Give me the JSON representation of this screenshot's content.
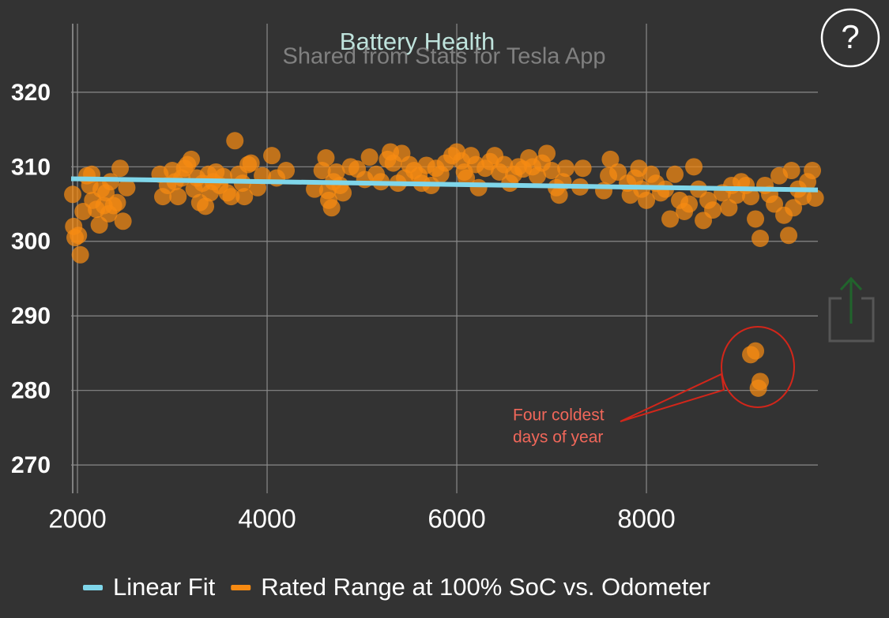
{
  "chart_data": {
    "type": "scatter",
    "title": "Battery Health",
    "subtitle": "Shared from Stats for Tesla App",
    "xlim": [
      1933,
      9808
    ],
    "ylim": [
      266.2,
      329.2
    ],
    "xticks": [
      2000,
      4000,
      6000,
      8000
    ],
    "yticks": [
      270,
      280,
      290,
      300,
      310,
      320
    ],
    "grid": true,
    "legend": "bottom",
    "annotation": [
      "Four coldest",
      "days of year"
    ],
    "series": [
      {
        "name": "Linear Fit",
        "color": "#7fd6ea",
        "kind": "line",
        "x": [
          1933,
          9808
        ],
        "values": [
          308.4,
          306.9
        ]
      },
      {
        "name": "Rated Range at 100% SoC vs. Odometer",
        "color": "#f78a12",
        "kind": "scatter",
        "x": [
          1950,
          1960,
          1975,
          2010,
          2030,
          2060,
          2100,
          2130,
          2160,
          2200,
          2230,
          2250,
          2300,
          2330,
          2350,
          2380,
          2420,
          2450,
          2480,
          2520,
          2150,
          2280,
          2870,
          2900,
          2950,
          3000,
          3030,
          3060,
          3100,
          3130,
          3160,
          3200,
          3230,
          3260,
          3290,
          3320,
          3350,
          3380,
          3400,
          3430,
          3460,
          3500,
          3540,
          3580,
          3620,
          3660,
          3700,
          3740,
          3760,
          3800,
          3830,
          3900,
          3950,
          4050,
          4100,
          4200,
          4500,
          4580,
          4620,
          4640,
          4650,
          4680,
          4700,
          4730,
          4770,
          4800,
          4880,
          4950,
          5030,
          5080,
          5150,
          5200,
          5270,
          5300,
          5330,
          5380,
          5420,
          5450,
          5500,
          5550,
          5600,
          5630,
          5680,
          5730,
          5780,
          5830,
          5880,
          5950,
          6000,
          6050,
          6080,
          6100,
          6150,
          6200,
          6230,
          6300,
          6350,
          6400,
          6450,
          6500,
          6560,
          6600,
          6650,
          6700,
          6760,
          6800,
          6850,
          6900,
          6950,
          7000,
          7050,
          7080,
          7120,
          7150,
          7300,
          7330,
          7550,
          7600,
          7620,
          7700,
          7800,
          7830,
          7880,
          7920,
          7950,
          8000,
          8050,
          8100,
          8150,
          8200,
          8250,
          8300,
          8350,
          8400,
          8450,
          8500,
          8550,
          8600,
          8650,
          8700,
          8800,
          8870,
          8900,
          8950,
          9000,
          9050,
          9100,
          9150,
          9200,
          9250,
          9300,
          9350,
          9400,
          9450,
          9500,
          9530,
          9550,
          9600,
          9650,
          9700,
          9750,
          9780,
          9100,
          9150,
          9200,
          9180
        ],
        "values": [
          306.3,
          302,
          300.5,
          300.8,
          298.2,
          304,
          308.8,
          307.5,
          305.5,
          304.3,
          302.2,
          307,
          306.5,
          303.7,
          308,
          304.8,
          305.2,
          309.8,
          302.7,
          307.2,
          309,
          304.8,
          309,
          306,
          307.5,
          309.5,
          308,
          306,
          308.5,
          309.8,
          310.3,
          311,
          307,
          308.5,
          305.2,
          307.8,
          304.7,
          309,
          306.5,
          308,
          309.3,
          307.5,
          308.7,
          306.5,
          306,
          313.5,
          309,
          307.8,
          306,
          310.3,
          310.5,
          307.2,
          308.8,
          311.5,
          308.5,
          309.5,
          307,
          309.5,
          311.2,
          306.8,
          305.5,
          304.5,
          308,
          309.3,
          307.5,
          306.5,
          310,
          309.7,
          308.3,
          311.3,
          309,
          308,
          311,
          312,
          310.5,
          307.8,
          311.8,
          308.5,
          310.3,
          309.5,
          308.8,
          307.8,
          310.2,
          307.5,
          309.8,
          309,
          310.5,
          311.5,
          312,
          310.8,
          309.3,
          308.5,
          311.5,
          310.3,
          307.2,
          309.8,
          310.7,
          311.5,
          309.3,
          310.3,
          307.8,
          309,
          310,
          309.7,
          311.2,
          310,
          308.8,
          310.5,
          311.8,
          309.5,
          307.2,
          306.2,
          308,
          309.8,
          307.3,
          309.8,
          306.8,
          308.8,
          311,
          309.3,
          307.8,
          306.2,
          308.5,
          309.8,
          307,
          305.5,
          309,
          307.8,
          306.5,
          307,
          303,
          309,
          305.5,
          304,
          305,
          310,
          307,
          302.8,
          305.5,
          304.2,
          306.5,
          304.5,
          307.5,
          306.2,
          308,
          307.5,
          306,
          303,
          300.4,
          307.5,
          306.3,
          305,
          308.8,
          303.5,
          300.8,
          309.5,
          304.5,
          307,
          306,
          308,
          309.5,
          305.8,
          284.8,
          285.3,
          281.2,
          280.3
        ]
      }
    ]
  },
  "ui": {
    "help": "?"
  }
}
